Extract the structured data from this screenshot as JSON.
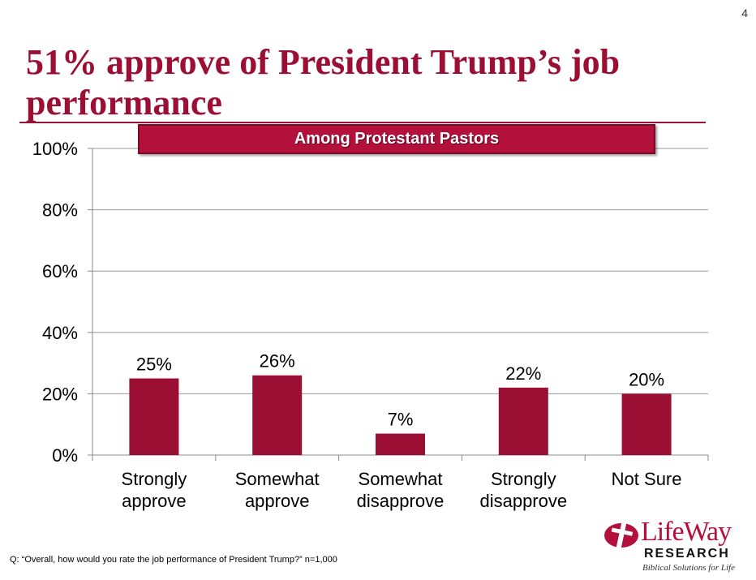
{
  "page_number": "4",
  "title": "51% approve of President Trump’s job performance",
  "banner": "Among Protestant Pastors",
  "footnote": "Q: “Overall, how would you rate the job performance of President Trump?” n=1,000",
  "logo": {
    "name": "LifeWay",
    "sub": "RESEARCH",
    "tagline": "Biblical Solutions for Life",
    "icon": "cross-circle-icon"
  },
  "colors": {
    "bar": "#9b0f35",
    "title": "#9b0f35",
    "banner": "#b3103b"
  },
  "chart_data": {
    "type": "bar",
    "categories": [
      [
        "Strongly",
        "approve"
      ],
      [
        "Somewhat",
        "approve"
      ],
      [
        "Somewhat",
        "disapprove"
      ],
      [
        "Strongly",
        "disapprove"
      ],
      [
        "Not Sure"
      ]
    ],
    "values": [
      25,
      26,
      7,
      22,
      20
    ],
    "data_labels": [
      "25%",
      "26%",
      "7%",
      "22%",
      "20%"
    ],
    "ylim": [
      0,
      100
    ],
    "yticks": [
      0,
      20,
      40,
      60,
      80,
      100
    ],
    "ytick_labels": [
      "0%",
      "20%",
      "40%",
      "60%",
      "80%",
      "100%"
    ],
    "grid": true
  }
}
